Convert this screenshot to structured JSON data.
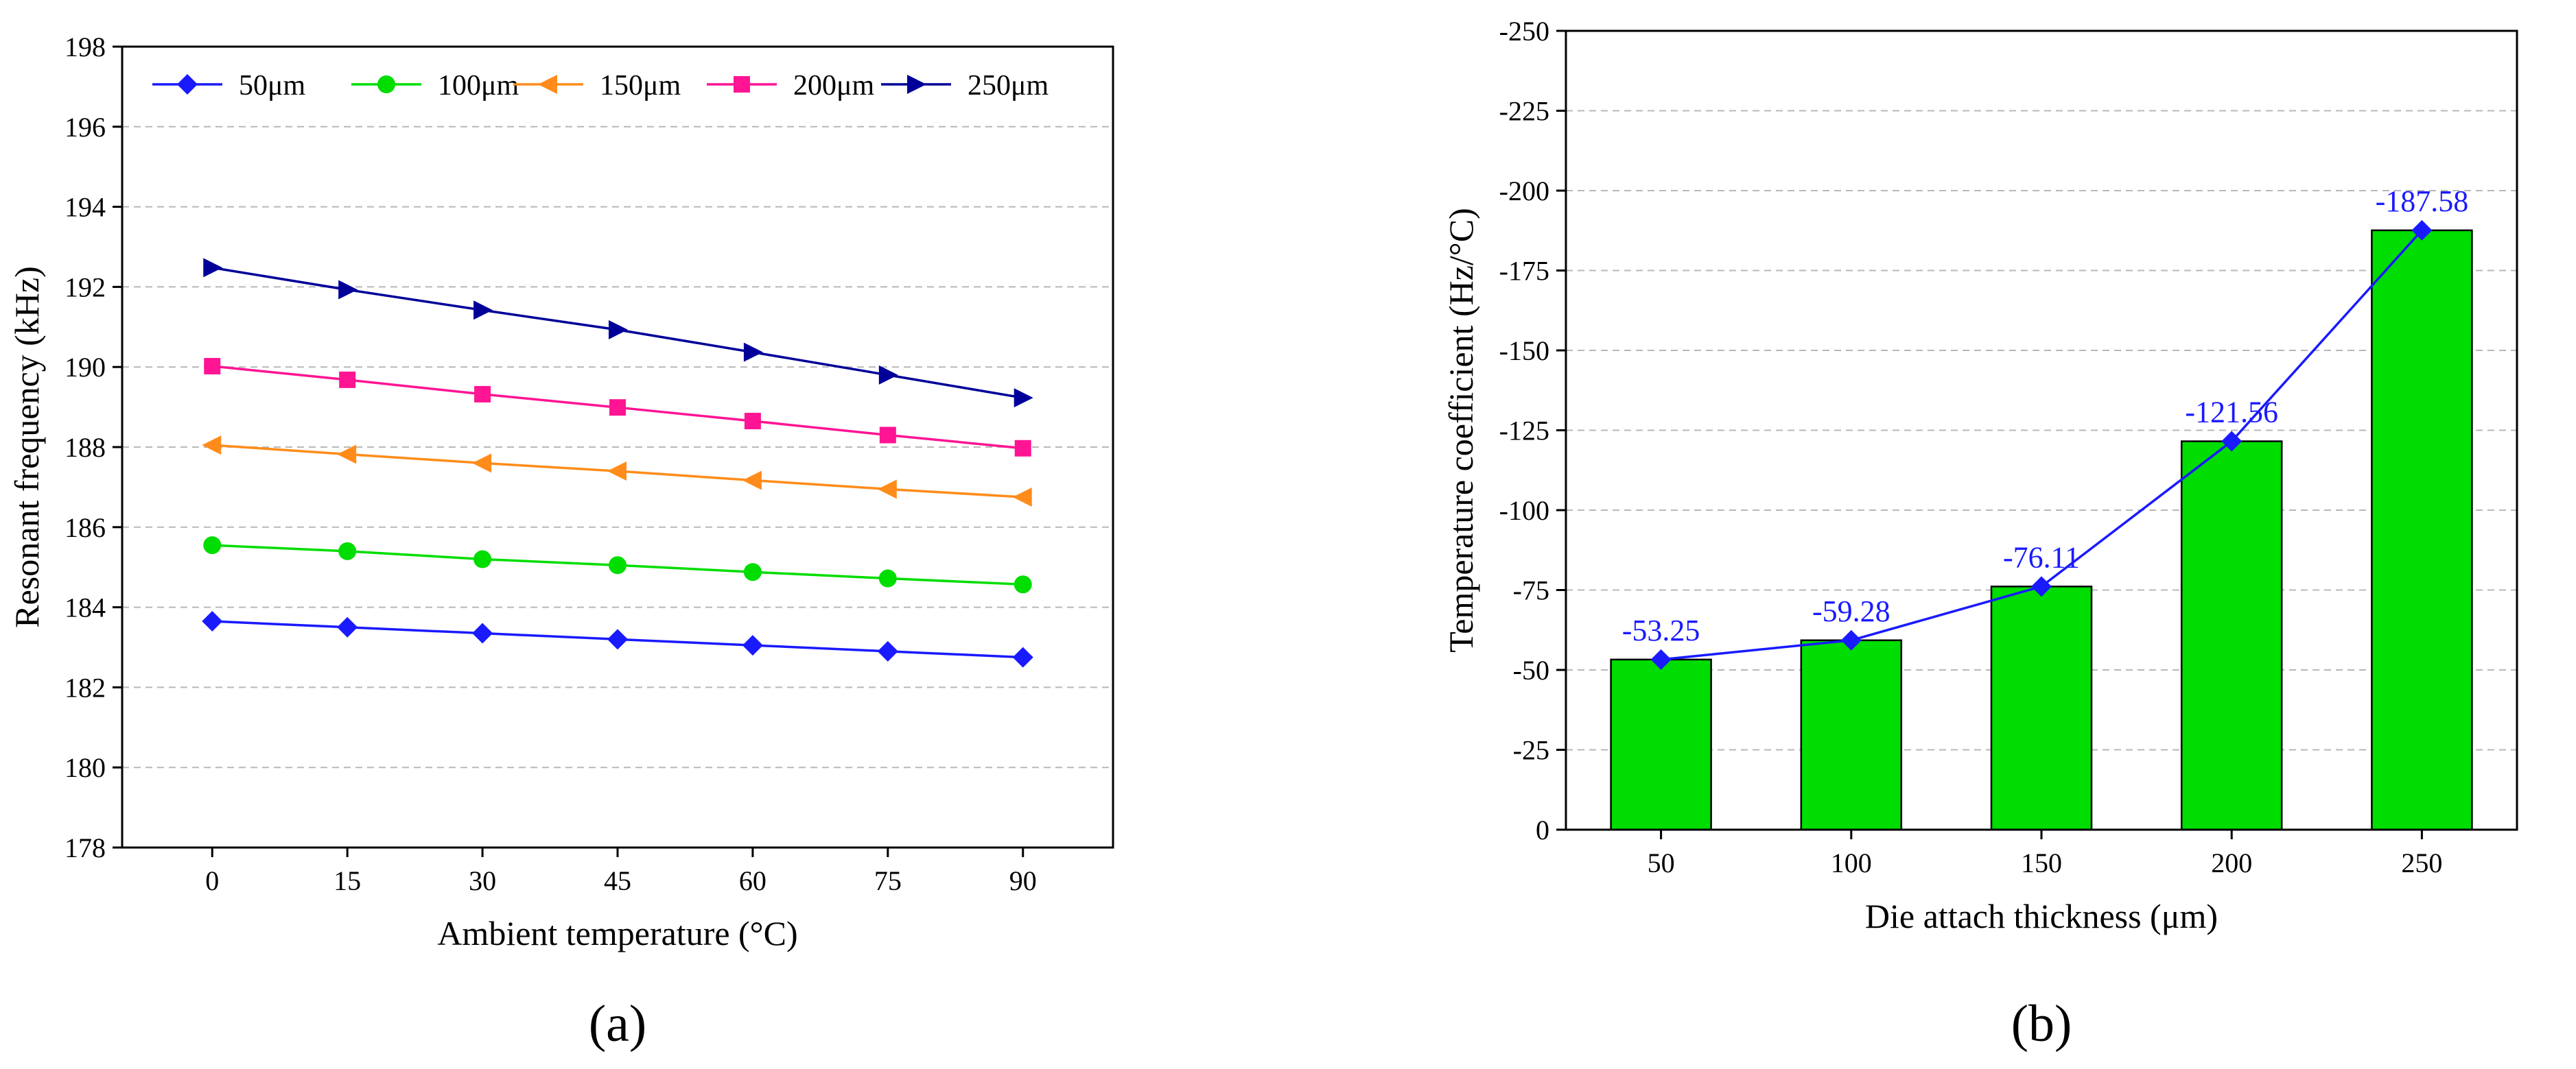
{
  "panels": {
    "a_label": "(a)",
    "b_label": "(b)"
  },
  "chart_data": [
    {
      "type": "line",
      "title": "",
      "xlabel": "Ambient temperature (°C)",
      "ylabel": "Resonant frequency (kHz)",
      "x": [
        0,
        15,
        30,
        45,
        60,
        75,
        90
      ],
      "xticks": [
        "0",
        "15",
        "30",
        "45",
        "60",
        "75",
        "90"
      ],
      "xlim": [
        -10,
        100
      ],
      "ylim": [
        178,
        198
      ],
      "yticks": [
        "178",
        "180",
        "182",
        "184",
        "186",
        "188",
        "190",
        "192",
        "194",
        "196",
        "198"
      ],
      "grid": "horizontal dashed",
      "legend_position": "top",
      "series": [
        {
          "name": "50μm",
          "color": "#1a1aff",
          "marker": "diamond",
          "values": [
            183.65,
            183.5,
            183.35,
            183.2,
            183.05,
            182.9,
            182.75
          ]
        },
        {
          "name": "100μm",
          "color": "#00dd00",
          "marker": "circle",
          "values": [
            185.55,
            185.4,
            185.2,
            185.05,
            184.88,
            184.72,
            184.57
          ]
        },
        {
          "name": "150μm",
          "color": "#ff8c1a",
          "marker": "triangle-left",
          "values": [
            188.05,
            187.82,
            187.6,
            187.4,
            187.17,
            186.95,
            186.75
          ]
        },
        {
          "name": "200μm",
          "color": "#ff1493",
          "marker": "square",
          "values": [
            190.02,
            189.68,
            189.32,
            188.99,
            188.65,
            188.3,
            187.97
          ]
        },
        {
          "name": "250μm",
          "color": "#000099",
          "marker": "triangle-right",
          "values": [
            192.48,
            191.93,
            191.42,
            190.93,
            190.37,
            189.8,
            189.23
          ]
        }
      ]
    },
    {
      "type": "bar",
      "title": "",
      "xlabel": "Die attach thickness (μm)",
      "ylabel": "Temperature coefficient (Hz/°C)",
      "categories": [
        "50",
        "100",
        "150",
        "200",
        "250"
      ],
      "values": [
        -53.25,
        -59.28,
        -76.11,
        -121.56,
        -187.58
      ],
      "data_labels": [
        "-53.25",
        "-59.28",
        "-76.11",
        "-121.56",
        "-187.58"
      ],
      "ylim": [
        0,
        -250
      ],
      "y_axis_inverted": true,
      "yticks": [
        "0",
        "-25",
        "-50",
        "-75",
        "-100",
        "-125",
        "-150",
        "-175",
        "-200",
        "-225",
        "-250"
      ],
      "grid": "horizontal dashed",
      "bar_color": "#00dd00",
      "line_color": "#1a1aff",
      "label_color": "#1a1aff"
    }
  ]
}
